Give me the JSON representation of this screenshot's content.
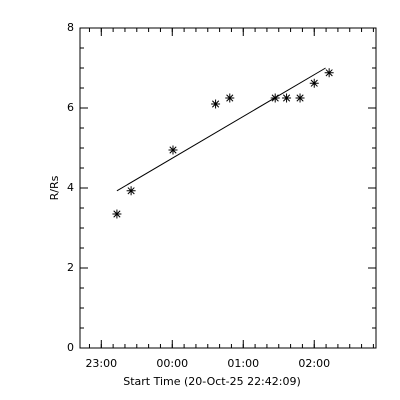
{
  "chart_data": {
    "type": "scatter",
    "x_label": "Start Time (20-Oct-25 22:42:09)",
    "y_label": "R/Rs",
    "color": "#000000",
    "points": {
      "x": [
        23.22,
        23.42,
        24.01,
        24.61,
        24.81,
        25.45,
        25.61,
        25.8,
        26.0,
        26.21
      ],
      "y": [
        3.35,
        3.93,
        4.95,
        6.1,
        6.25,
        6.25,
        6.25,
        6.25,
        6.62,
        6.88
      ]
    },
    "fit_line": {
      "x": [
        23.22,
        26.16
      ],
      "y": [
        3.93,
        7.0
      ]
    },
    "xlim": [
      22.7,
      26.87
    ],
    "ylim": [
      0,
      8
    ],
    "xticks": [
      {
        "value": 23,
        "label": "23:00"
      },
      {
        "value": 24,
        "label": "00:00"
      },
      {
        "value": 25,
        "label": "01:00"
      },
      {
        "value": 26,
        "label": "02:00"
      }
    ],
    "yticks": [
      0,
      2,
      4,
      6,
      8
    ]
  }
}
